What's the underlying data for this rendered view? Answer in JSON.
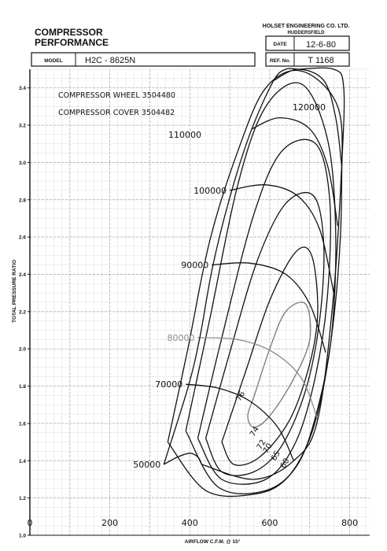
{
  "header": {
    "title_line1": "COMPRESSOR",
    "title_line2": "PERFORMANCE",
    "company": "HOLSET ENGINEERING CO. LTD.",
    "city": "HUDDERSFIELD",
    "date_label": "DATE",
    "date_value": "12-6-80",
    "model_label": "MODEL",
    "model_value": "H2C - 8625N",
    "ref_label": "REF. No.",
    "ref_value": "T 1168"
  },
  "notes": {
    "wheel": "COMPRESSOR WHEEL 3504480",
    "cover": "COMPRESSOR COVER 3504482"
  },
  "chart_data": {
    "type": "line",
    "title": "COMPRESSOR PERFORMANCE",
    "xlabel": "AIRFLOW   C.F.M. @ 15°",
    "ylabel": "TOTAL PRESSURE RATIO",
    "xlim": [
      0,
      850
    ],
    "ylim": [
      1.0,
      3.5
    ],
    "x_ticks": [
      "0",
      "200",
      "400",
      "600",
      "800"
    ],
    "y_ticks": [
      "1.0",
      "1.2",
      "1.4",
      "1.6",
      "1.8",
      "2.0",
      "2.2",
      "2.4",
      "2.6",
      "2.8",
      "3.0",
      "3.2",
      "3.4"
    ],
    "grid": true,
    "speed_lines": [
      {
        "label": "50000",
        "points": [
          [
            335,
            1.38
          ],
          [
            370,
            1.42
          ],
          [
            400,
            1.44
          ],
          [
            420,
            1.42
          ],
          [
            430,
            1.38
          ]
        ]
      },
      {
        "label": "70000",
        "points": [
          [
            390,
            1.81
          ],
          [
            470,
            1.79
          ],
          [
            550,
            1.72
          ],
          [
            620,
            1.58
          ],
          [
            660,
            1.4
          ]
        ]
      },
      {
        "label": "80000",
        "points": [
          [
            420,
            2.06
          ],
          [
            520,
            2.05
          ],
          [
            610,
            1.98
          ],
          [
            680,
            1.84
          ],
          [
            720,
            1.62
          ]
        ]
      },
      {
        "label": "90000",
        "points": [
          [
            455,
            2.45
          ],
          [
            550,
            2.46
          ],
          [
            640,
            2.4
          ],
          [
            700,
            2.24
          ],
          [
            740,
            1.98
          ]
        ]
      },
      {
        "label": "100000",
        "points": [
          [
            500,
            2.85
          ],
          [
            590,
            2.88
          ],
          [
            670,
            2.82
          ],
          [
            725,
            2.64
          ],
          [
            760,
            2.3
          ]
        ]
      },
      {
        "label": "110000",
        "points": [
          [
            555,
            3.18
          ],
          [
            625,
            3.24
          ],
          [
            700,
            3.18
          ],
          [
            745,
            2.98
          ],
          [
            770,
            2.66
          ]
        ]
      },
      {
        "label": "120000",
        "points": [
          [
            610,
            3.44
          ],
          [
            670,
            3.5
          ],
          [
            735,
            3.44
          ],
          [
            765,
            3.24
          ],
          [
            780,
            2.98
          ]
        ]
      }
    ],
    "surge_line": [
      [
        335,
        1.38
      ],
      [
        395,
        1.79
      ],
      [
        425,
        2.06
      ],
      [
        458,
        2.45
      ],
      [
        505,
        2.85
      ],
      [
        555,
        3.18
      ],
      [
        610,
        3.44
      ],
      [
        640,
        3.5
      ],
      [
        670,
        3.5
      ]
    ],
    "choke_line": [
      [
        430,
        1.38
      ],
      [
        560,
        1.3
      ],
      [
        660,
        1.4
      ],
      [
        720,
        1.62
      ],
      [
        760,
        2.3
      ],
      [
        780,
        2.98
      ],
      [
        785,
        3.4
      ],
      [
        760,
        3.5
      ],
      [
        670,
        3.5
      ]
    ],
    "efficiency_islands": [
      {
        "label": "76",
        "points": [
          [
            560,
            1.74
          ],
          [
            600,
            2.0
          ],
          [
            640,
            2.2
          ],
          [
            690,
            2.24
          ],
          [
            700,
            2.05
          ],
          [
            660,
            1.84
          ],
          [
            600,
            1.64
          ],
          [
            560,
            1.58
          ],
          [
            545,
            1.64
          ],
          [
            560,
            1.74
          ]
        ]
      },
      {
        "label": "74",
        "points": [
          [
            480,
            1.5
          ],
          [
            540,
            1.88
          ],
          [
            600,
            2.26
          ],
          [
            665,
            2.52
          ],
          [
            705,
            2.5
          ],
          [
            720,
            2.2
          ],
          [
            700,
            1.92
          ],
          [
            650,
            1.62
          ],
          [
            575,
            1.42
          ],
          [
            510,
            1.38
          ],
          [
            480,
            1.5
          ]
        ]
      },
      {
        "label": "72",
        "points": [
          [
            440,
            1.52
          ],
          [
            500,
            1.98
          ],
          [
            570,
            2.48
          ],
          [
            640,
            2.78
          ],
          [
            710,
            2.82
          ],
          [
            735,
            2.56
          ],
          [
            725,
            2.16
          ],
          [
            690,
            1.78
          ],
          [
            630,
            1.48
          ],
          [
            560,
            1.34
          ],
          [
            480,
            1.34
          ],
          [
            440,
            1.52
          ]
        ]
      },
      {
        "label": "70",
        "points": [
          [
            420,
            1.52
          ],
          [
            480,
            2.06
          ],
          [
            560,
            2.72
          ],
          [
            630,
            3.06
          ],
          [
            715,
            3.1
          ],
          [
            750,
            2.8
          ],
          [
            745,
            2.3
          ],
          [
            715,
            1.86
          ],
          [
            665,
            1.5
          ],
          [
            590,
            1.3
          ],
          [
            480,
            1.3
          ],
          [
            420,
            1.52
          ]
        ]
      },
      {
        "label": "65",
        "points": [
          [
            390,
            1.56
          ],
          [
            450,
            2.16
          ],
          [
            520,
            2.88
          ],
          [
            590,
            3.3
          ],
          [
            680,
            3.42
          ],
          [
            745,
            3.12
          ],
          [
            765,
            2.62
          ],
          [
            755,
            2.08
          ],
          [
            720,
            1.68
          ],
          [
            670,
            1.38
          ],
          [
            590,
            1.24
          ],
          [
            470,
            1.26
          ],
          [
            390,
            1.56
          ]
        ]
      },
      {
        "label": "60",
        "points": [
          [
            345,
            1.5
          ],
          [
            395,
            2.0
          ],
          [
            450,
            2.58
          ],
          [
            520,
            3.06
          ],
          [
            590,
            3.4
          ],
          [
            680,
            3.49
          ],
          [
            770,
            3.3
          ],
          [
            780,
            2.9
          ],
          [
            770,
            2.38
          ],
          [
            740,
            1.86
          ],
          [
            700,
            1.52
          ],
          [
            640,
            1.3
          ],
          [
            560,
            1.22
          ],
          [
            440,
            1.24
          ],
          [
            345,
            1.5
          ]
        ]
      }
    ]
  }
}
